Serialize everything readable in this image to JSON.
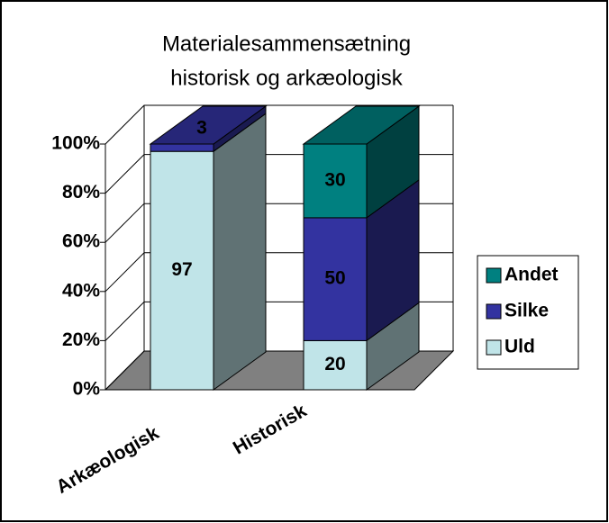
{
  "chart_data": {
    "type": "bar3d_stacked",
    "title": [
      "Materialesammensætning",
      "historisk og arkæologisk"
    ],
    "categories": [
      "Arkæologisk",
      "Historisk"
    ],
    "series": [
      {
        "name": "Uld",
        "color": "#c0e4e8",
        "values": [
          97,
          20
        ]
      },
      {
        "name": "Silke",
        "color": "#3333a0",
        "values": [
          3,
          50
        ]
      },
      {
        "name": "Andet",
        "color": "#008080",
        "values": [
          null,
          30
        ]
      }
    ],
    "ylim": [
      0,
      100
    ],
    "yticks": [
      {
        "value": 0,
        "label": "0%"
      },
      {
        "value": 20,
        "label": "20%"
      },
      {
        "value": 40,
        "label": "40%"
      },
      {
        "value": 60,
        "label": "60%"
      },
      {
        "value": 80,
        "label": "80%"
      },
      {
        "value": 100,
        "label": "100%"
      }
    ],
    "grid": true,
    "legend": "right"
  }
}
